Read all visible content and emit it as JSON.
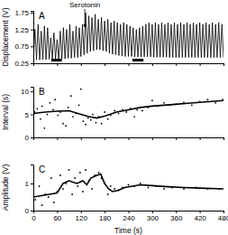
{
  "chart_data": [
    {
      "type": "line",
      "title": "A",
      "y_label": "Displacement (V)",
      "xlim": [
        0,
        480
      ],
      "xticks": [
        0,
        60,
        120,
        180,
        240,
        300,
        360,
        420,
        480
      ],
      "ylim": [
        0.25,
        1.8
      ],
      "yticks": [
        0.25,
        0.75,
        1.25,
        1.75
      ],
      "tick_labels": "y",
      "annotations": [
        {
          "text": "Serotonin",
          "x": 130
        }
      ],
      "periods": [
        [
          45,
          72
        ],
        [
          250,
          278
        ]
      ],
      "series": [
        {
          "type": "line",
          "color": "#000000",
          "x": [
            0,
            4,
            8,
            12,
            16,
            20,
            24,
            28,
            32,
            36,
            40,
            44,
            48,
            52,
            56,
            60,
            64,
            68,
            72,
            76,
            80,
            84,
            88,
            92,
            96,
            100,
            104,
            108,
            112,
            116,
            120,
            124,
            128,
            132,
            136,
            140,
            144,
            148,
            152,
            156,
            160,
            164,
            168,
            172,
            176,
            180,
            184,
            188,
            192,
            196,
            200,
            204,
            208,
            212,
            216,
            220,
            224,
            228,
            232,
            236,
            240,
            244,
            248,
            252,
            256,
            260,
            264,
            268,
            272,
            276,
            280,
            284,
            288,
            292,
            296,
            300,
            304,
            308,
            312,
            316,
            320,
            324,
            328,
            332,
            336,
            340,
            344,
            348,
            352,
            356,
            360,
            364,
            368,
            372,
            376,
            380,
            384,
            388,
            392,
            396,
            400,
            404,
            408,
            412,
            416,
            420,
            424,
            428,
            432,
            436,
            440,
            444,
            448,
            452,
            456,
            460,
            464,
            468,
            472,
            476,
            480
          ],
          "values": [
            0.35,
            1.25,
            0.35,
            1.4,
            0.35,
            1.2,
            0.36,
            1.35,
            0.36,
            1.3,
            0.37,
            1.0,
            0.37,
            1.15,
            0.38,
            0.95,
            0.38,
            1.2,
            0.38,
            1.3,
            0.38,
            1.25,
            0.4,
            1.4,
            0.4,
            1.2,
            0.42,
            1.35,
            0.42,
            1.3,
            0.45,
            1.4,
            0.5,
            1.75,
            0.55,
            1.65,
            0.6,
            1.6,
            0.62,
            1.7,
            0.65,
            1.55,
            0.65,
            1.6,
            0.62,
            1.5,
            0.6,
            1.55,
            0.55,
            1.45,
            0.52,
            1.5,
            0.5,
            1.45,
            0.48,
            1.4,
            0.46,
            1.45,
            0.45,
            1.4,
            0.45,
            1.35,
            0.45,
            1.3,
            0.44,
            1.25,
            0.44,
            1.3,
            0.44,
            1.35,
            0.44,
            1.4,
            0.44,
            1.45,
            0.44,
            1.4,
            0.43,
            1.45,
            0.43,
            1.4,
            0.43,
            1.45,
            0.43,
            1.4,
            0.43,
            1.45,
            0.42,
            1.4,
            0.42,
            1.45,
            0.42,
            1.4,
            0.42,
            1.45,
            0.42,
            1.4,
            0.42,
            1.45,
            0.42,
            1.4,
            0.42,
            1.45,
            0.42,
            1.4,
            0.42,
            1.45,
            0.42,
            1.4,
            0.42,
            1.45,
            0.42,
            1.4,
            0.42,
            1.45,
            0.42,
            1.4,
            0.42,
            1.45,
            0.42,
            1.4,
            0.42
          ]
        }
      ]
    },
    {
      "type": "scatter",
      "title": "B",
      "y_label": "Interval (s)",
      "xlim": [
        0,
        480
      ],
      "xticks": [
        0,
        60,
        120,
        180,
        240,
        300,
        360,
        420,
        480
      ],
      "ylim": [
        0,
        11
      ],
      "yticks": [
        0,
        5,
        10
      ],
      "tick_labels": "y",
      "series": [
        {
          "type": "scatter",
          "color": "#000000",
          "x": [
            3,
            10,
            18,
            22,
            28,
            35,
            42,
            50,
            55,
            62,
            68,
            75,
            82,
            88,
            95,
            100,
            108,
            115,
            120,
            126,
            132,
            138,
            145,
            150,
            158,
            165,
            172,
            180,
            188,
            195,
            205,
            215,
            225,
            235,
            245,
            255,
            262,
            275,
            290,
            300,
            315,
            330,
            345,
            360,
            380,
            400,
            420,
            440,
            460,
            478
          ],
          "values": [
            5.5,
            6.2,
            4.0,
            6.8,
            2.0,
            5.0,
            7.5,
            6.0,
            8.2,
            4.8,
            5.5,
            3.0,
            2.5,
            6.5,
            9.0,
            4.5,
            5.2,
            7.0,
            10.5,
            3.5,
            2.8,
            4.2,
            3.8,
            5.0,
            3.2,
            4.5,
            3.0,
            5.5,
            4.0,
            4.8,
            5.8,
            5.2,
            6.0,
            5.5,
            6.3,
            4.5,
            6.0,
            5.8,
            6.5,
            8.0,
            6.8,
            7.5,
            7.0,
            7.2,
            7.6,
            7.0,
            7.8,
            8.2,
            7.5,
            8.2
          ]
        },
        {
          "type": "line",
          "color": "#000000",
          "x": [
            0,
            30,
            60,
            90,
            120,
            140,
            160,
            180,
            210,
            240,
            270,
            300,
            330,
            360,
            390,
            420,
            450,
            480
          ],
          "values": [
            5.2,
            5.5,
            5.7,
            5.8,
            5.0,
            4.5,
            4.2,
            4.6,
            5.5,
            6.0,
            6.5,
            6.8,
            7.0,
            7.2,
            7.4,
            7.6,
            7.8,
            8.0
          ]
        }
      ]
    },
    {
      "type": "scatter",
      "title": "C",
      "y_label": "Amplitude (V)",
      "x_label": "Time (s)",
      "xlim": [
        0,
        480
      ],
      "xticks": [
        0,
        60,
        120,
        180,
        240,
        300,
        360,
        420,
        480
      ],
      "ylim": [
        0,
        1.7
      ],
      "yticks": [
        0,
        1
      ],
      "series": [
        {
          "type": "scatter",
          "color": "#000000",
          "x": [
            5,
            15,
            22,
            30,
            38,
            45,
            52,
            60,
            68,
            75,
            82,
            90,
            98,
            105,
            112,
            118,
            125,
            132,
            140,
            148,
            155,
            165,
            172,
            180,
            188,
            195,
            205,
            215,
            225,
            240,
            255,
            270,
            290,
            310,
            330,
            350,
            380,
            410,
            440,
            470
          ],
          "values": [
            0.4,
            0.9,
            0.2,
            0.6,
            0.5,
            1.2,
            0.3,
            0.7,
            1.3,
            0.8,
            1.0,
            1.5,
            0.6,
            1.2,
            0.9,
            1.4,
            0.7,
            1.5,
            1.1,
            0.8,
            1.3,
            1.4,
            1.2,
            1.0,
            0.6,
            0.9,
            0.8,
            0.75,
            0.85,
            0.95,
            0.9,
            1.0,
            0.85,
            0.9,
            0.8,
            0.85,
            0.8,
            0.85,
            0.8,
            0.8
          ]
        },
        {
          "type": "line",
          "color": "#000000",
          "x": [
            0,
            20,
            40,
            60,
            75,
            90,
            110,
            125,
            135,
            145,
            160,
            170,
            180,
            190,
            200,
            215,
            230,
            250,
            270,
            300,
            340,
            380,
            420,
            480
          ],
          "values": [
            0.5,
            0.55,
            0.6,
            0.65,
            1.0,
            1.1,
            1.0,
            1.1,
            0.95,
            1.2,
            1.3,
            1.35,
            1.0,
            0.8,
            0.7,
            0.75,
            0.85,
            0.9,
            0.95,
            0.92,
            0.88,
            0.85,
            0.83,
            0.8
          ]
        }
      ]
    }
  ]
}
